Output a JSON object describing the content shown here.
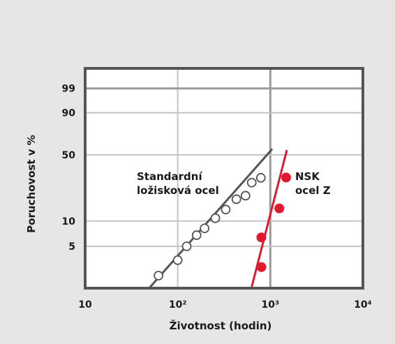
{
  "chart_data": {
    "type": "scatter",
    "title": "",
    "xlabel": "Životnost (hodin)",
    "ylabel": "Poruchovost v %",
    "x_scale": "log",
    "y_scale": "weibull",
    "xlim": [
      10,
      10000
    ],
    "ylim": [
      2,
      99
    ],
    "x_ticks": [
      {
        "value": 10,
        "label": "10"
      },
      {
        "value": 100,
        "label": "10²"
      },
      {
        "value": 1000,
        "label": "10³"
      },
      {
        "value": 10000,
        "label": "10⁴"
      }
    ],
    "y_ticks": [
      {
        "value": 5,
        "label": "5"
      },
      {
        "value": 10,
        "label": "10"
      },
      {
        "value": 50,
        "label": "50"
      },
      {
        "value": 90,
        "label": "90"
      },
      {
        "value": 99,
        "label": "99"
      }
    ],
    "grid": true,
    "series": [
      {
        "name": "Standardní ložisková ocel",
        "label_lines": [
          "Standardní",
          "ložisková ocel"
        ],
        "color": "#555555",
        "marker": "open-circle",
        "points": [
          {
            "x": 62,
            "y": 2.2
          },
          {
            "x": 100,
            "y": 3.4
          },
          {
            "x": 125,
            "y": 5.0
          },
          {
            "x": 160,
            "y": 6.8
          },
          {
            "x": 195,
            "y": 8.2
          },
          {
            "x": 255,
            "y": 10.8
          },
          {
            "x": 330,
            "y": 13.6
          },
          {
            "x": 430,
            "y": 17.8
          },
          {
            "x": 540,
            "y": 19.5
          },
          {
            "x": 630,
            "y": 27.0
          },
          {
            "x": 790,
            "y": 30.3
          }
        ],
        "fit_line": [
          {
            "x": 48,
            "y": 1.5
          },
          {
            "x": 1050,
            "y": 56.0
          }
        ]
      },
      {
        "name": "NSK ocel Z",
        "label_lines": [
          "NSK",
          "ocel Z"
        ],
        "color": "#e0192e",
        "marker": "filled-circle",
        "points": [
          {
            "x": 800,
            "y": 2.8
          },
          {
            "x": 800,
            "y": 6.4
          },
          {
            "x": 1250,
            "y": 14.0
          },
          {
            "x": 1480,
            "y": 30.5
          }
        ],
        "fit_line": [
          {
            "x": 620,
            "y": 1.5
          },
          {
            "x": 1510,
            "y": 55.0
          }
        ]
      }
    ]
  }
}
